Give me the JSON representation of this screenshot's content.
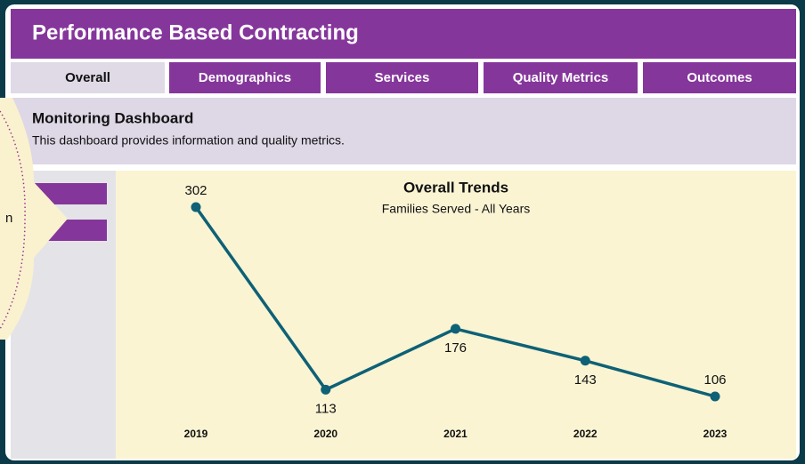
{
  "header": {
    "title": "Performance Based Contracting"
  },
  "tabs": [
    "Overall",
    "Demographics",
    "Services",
    "Quality Metrics",
    "Outcomes"
  ],
  "section": {
    "title": "Monitoring Dashboard",
    "text": "This dashboard provides information and quality metrics."
  },
  "callout": {
    "text": "n"
  },
  "chart_data": {
    "type": "line",
    "title": "Overall Trends",
    "subtitle": "Families Served - All Years",
    "categories": [
      "2019",
      "2020",
      "2021",
      "2022",
      "2023"
    ],
    "values": [
      302,
      113,
      176,
      143,
      106
    ],
    "color": "#0e6176"
  }
}
